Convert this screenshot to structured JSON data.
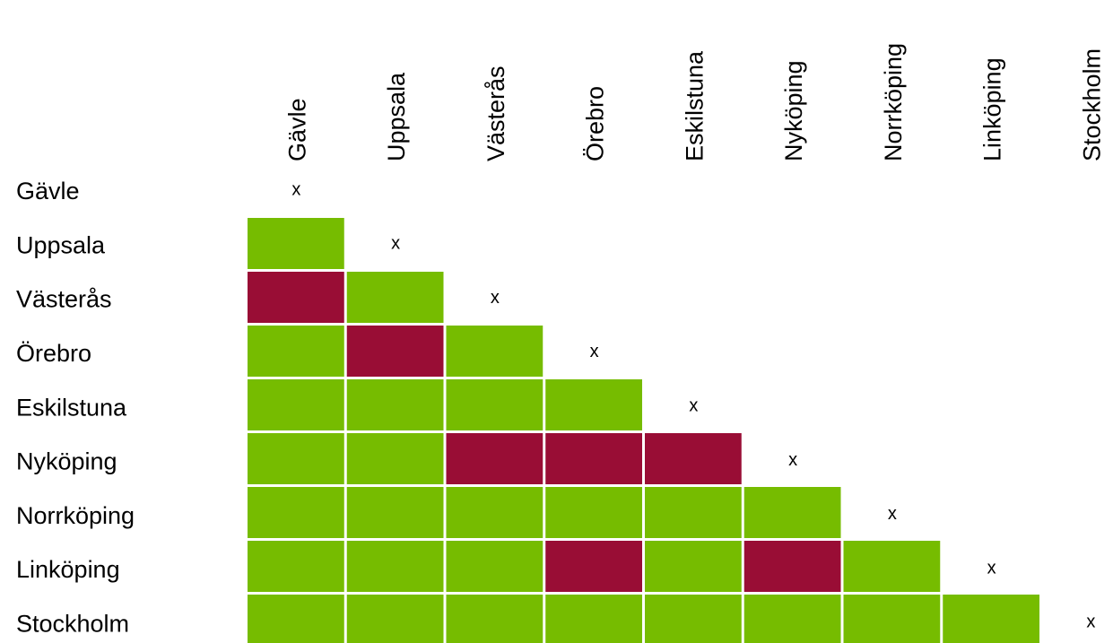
{
  "chart_data": {
    "type": "heatmap",
    "title": "",
    "rows": [
      "Gävle",
      "Uppsala",
      "Västerås",
      "Örebro",
      "Eskilstuna",
      "Nyköping",
      "Norrköping",
      "Linköping",
      "Stockholm"
    ],
    "columns": [
      "Gävle",
      "Uppsala",
      "Västerås",
      "Örebro",
      "Eskilstuna",
      "Nyköping",
      "Norrköping",
      "Linköping",
      "Stockholm"
    ],
    "diagonal_mark": "x",
    "legend_colors": {
      "green": "#76bc00",
      "red": "#990d35"
    },
    "cells": [
      [],
      [
        "green"
      ],
      [
        "red",
        "green"
      ],
      [
        "green",
        "red",
        "green"
      ],
      [
        "green",
        "green",
        "green",
        "green"
      ],
      [
        "green",
        "green",
        "red",
        "red",
        "red"
      ],
      [
        "green",
        "green",
        "green",
        "green",
        "green",
        "green"
      ],
      [
        "green",
        "green",
        "green",
        "red",
        "green",
        "red",
        "green"
      ],
      [
        "green",
        "green",
        "green",
        "green",
        "green",
        "green",
        "green",
        "green"
      ]
    ]
  }
}
